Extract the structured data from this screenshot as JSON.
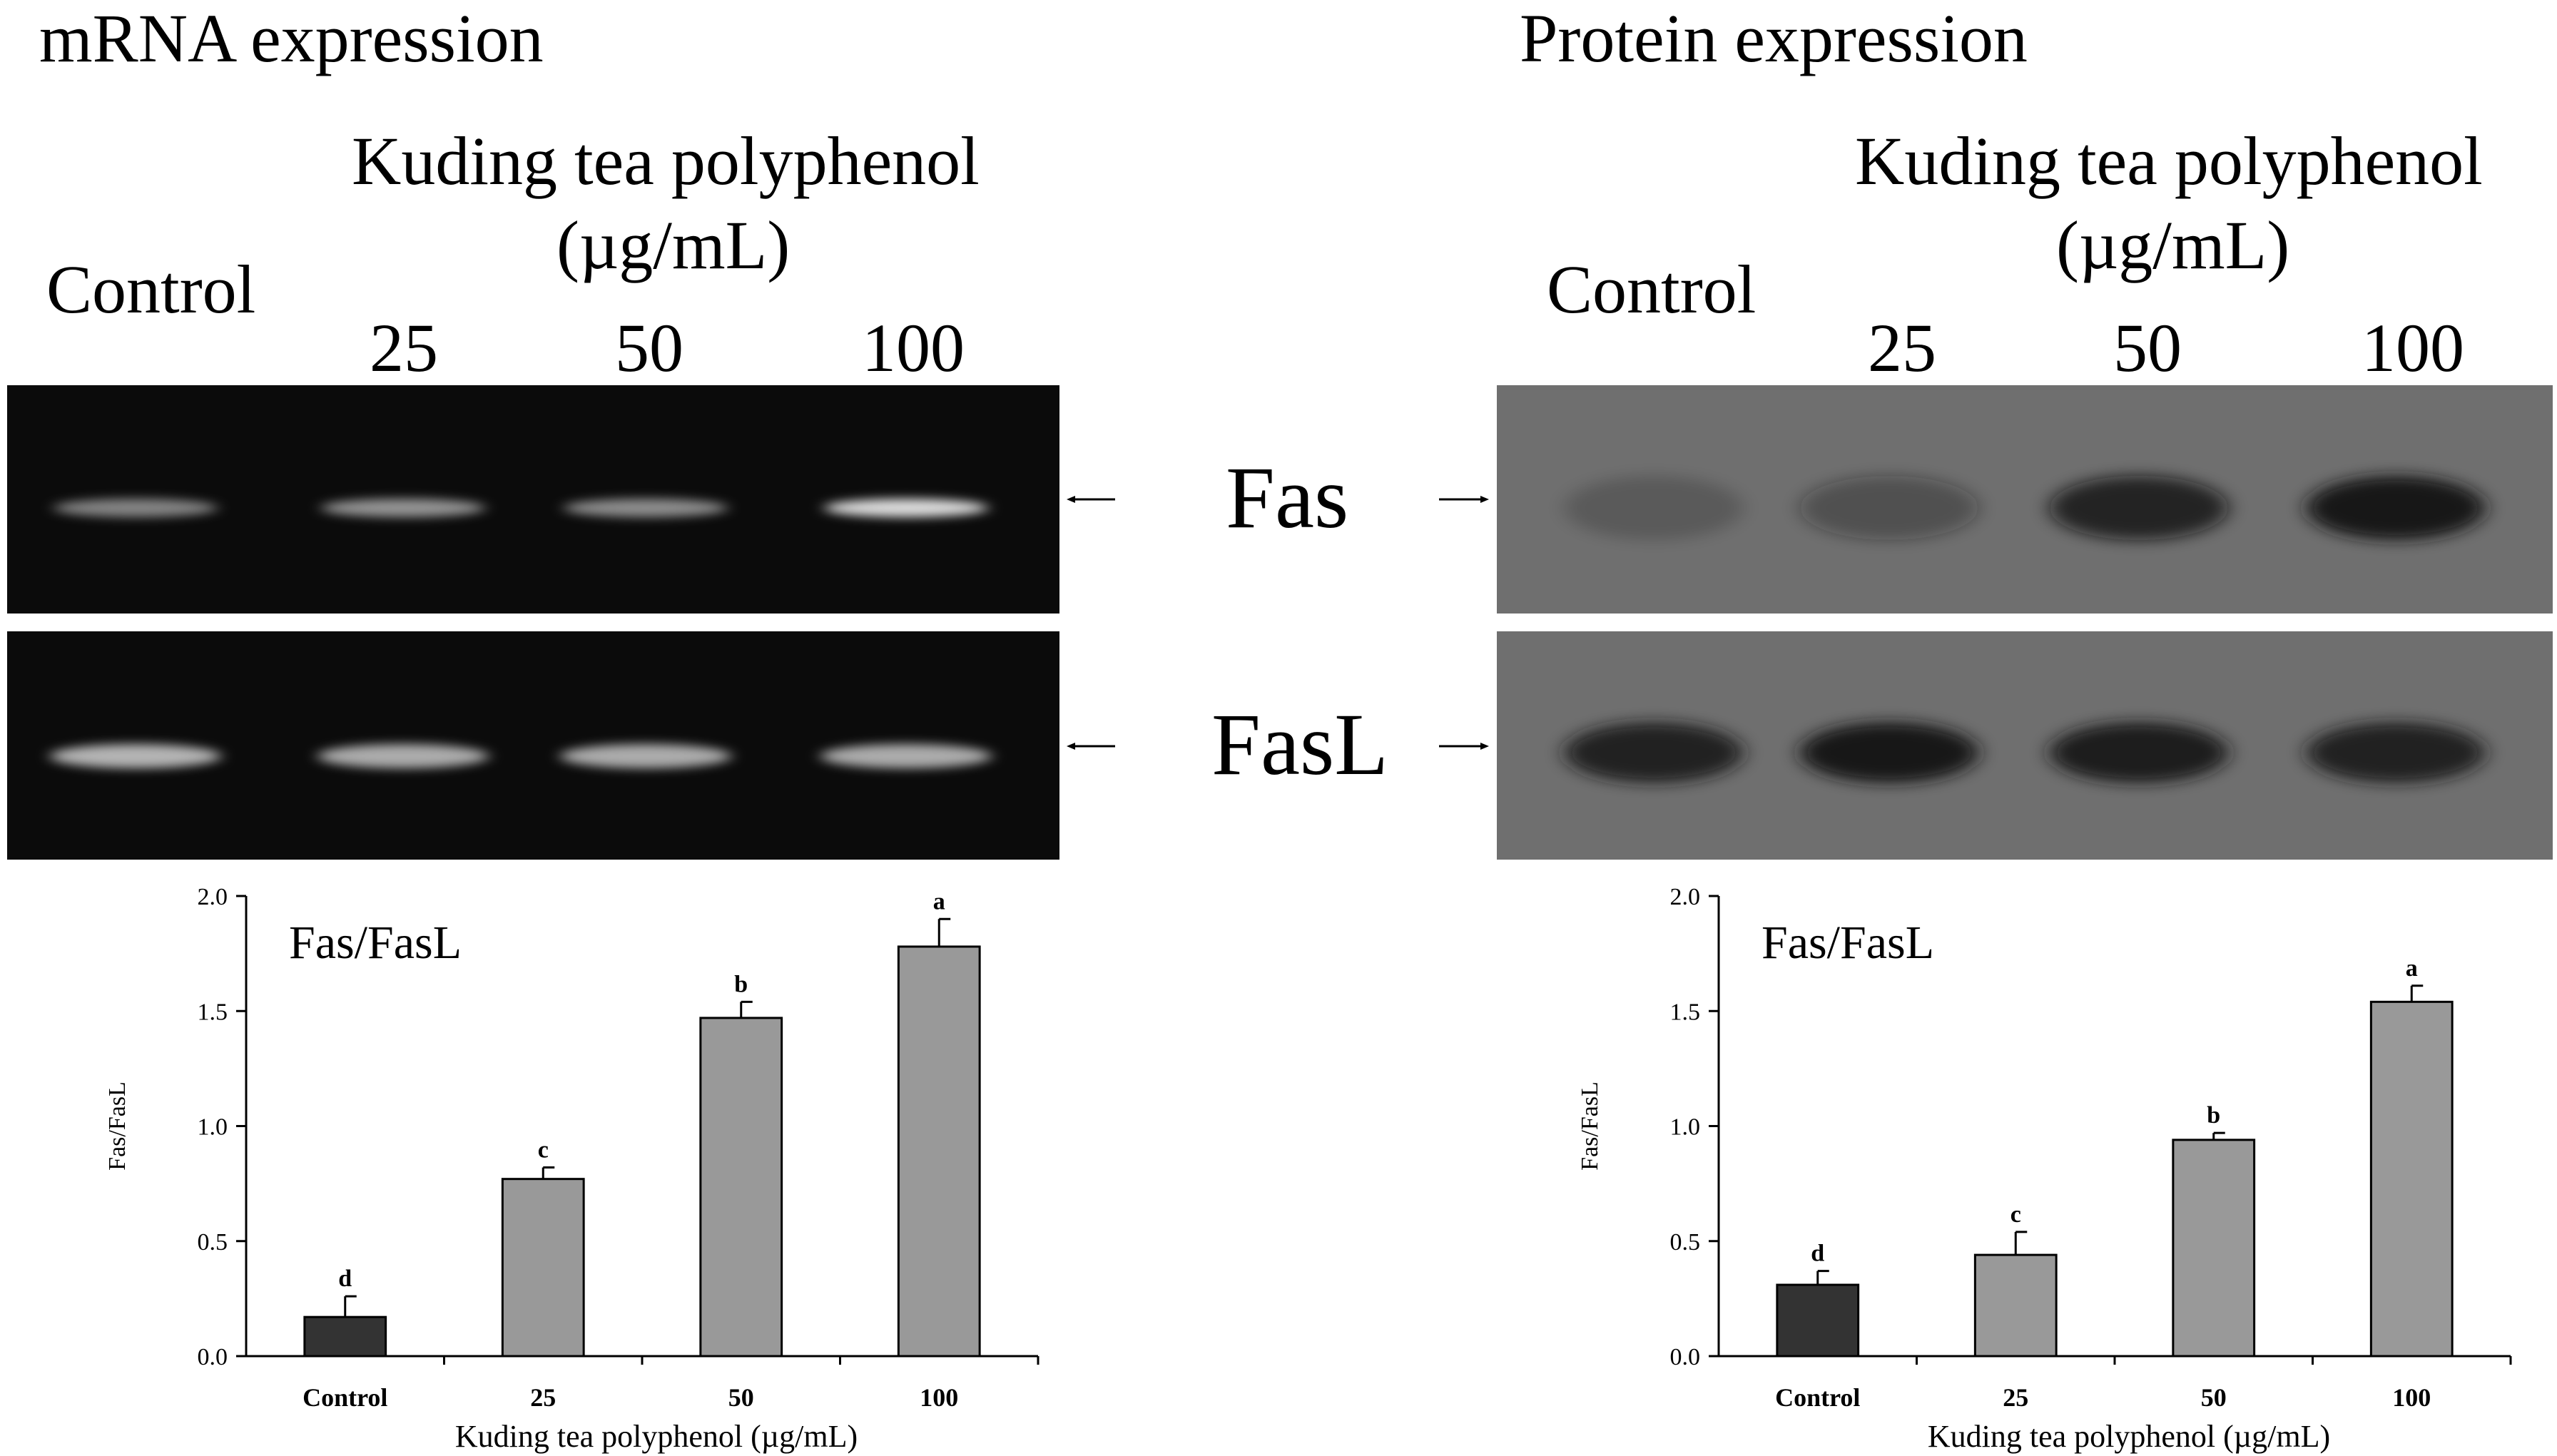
{
  "panels": [
    {
      "title": "mRNA expression",
      "group_label_line1": "Kuding tea polyphenol",
      "group_label_line2": "(µg/mL)",
      "control_label": "Control",
      "lanes": [
        "25",
        "50",
        "100"
      ]
    },
    {
      "title": "Protein expression",
      "group_label_line1": "Kuding tea polyphenol",
      "group_label_line2": "(µg/mL)",
      "control_label": "Control",
      "lanes": [
        "25",
        "50",
        "100"
      ]
    }
  ],
  "blot_labels": {
    "top": "Fas",
    "bottom": "FasL"
  },
  "blot_colors": {
    "mrna_background": "#0b0b0b",
    "protein_background": "#6f6f6f"
  },
  "band_intensity": {
    "mrna_fas": [
      0.45,
      0.55,
      0.5,
      1.0
    ],
    "mrna_fasl": [
      0.75,
      0.7,
      0.7,
      0.7
    ],
    "protein_fas": [
      0.12,
      0.3,
      0.75,
      0.95
    ],
    "protein_fasl": [
      0.85,
      0.95,
      0.9,
      0.85
    ]
  },
  "chart_data": [
    {
      "type": "bar",
      "inset_label": "Fas/FasL",
      "categories": [
        "Control",
        "25",
        "50",
        "100"
      ],
      "values": [
        0.17,
        0.77,
        1.47,
        1.78
      ],
      "errors": [
        0.09,
        0.05,
        0.07,
        0.12
      ],
      "letters": [
        "d",
        "c",
        "b",
        "a"
      ],
      "bar_colors": [
        "#333333",
        "#999999",
        "#999999",
        "#999999"
      ],
      "xlabel": "Kuding tea polyphenol (µg/mL)",
      "ylabel": "Fas/FasL",
      "ylim": [
        0,
        2.0
      ],
      "yticks": [
        "0.0",
        "0.5",
        "1.0",
        "1.5",
        "2.0"
      ],
      "grid": false
    },
    {
      "type": "bar",
      "inset_label": "Fas/FasL",
      "categories": [
        "Control",
        "25",
        "50",
        "100"
      ],
      "values": [
        0.31,
        0.44,
        0.94,
        1.54
      ],
      "errors": [
        0.06,
        0.1,
        0.03,
        0.07
      ],
      "letters": [
        "d",
        "c",
        "b",
        "a"
      ],
      "bar_colors": [
        "#333333",
        "#999999",
        "#999999",
        "#999999"
      ],
      "xlabel": "Kuding tea polyphenol (µg/mL)",
      "ylabel": "Fas/FasL",
      "ylim": [
        0,
        2.0
      ],
      "yticks": [
        "0.0",
        "0.5",
        "1.0",
        "1.5",
        "2.0"
      ],
      "grid": false
    }
  ]
}
